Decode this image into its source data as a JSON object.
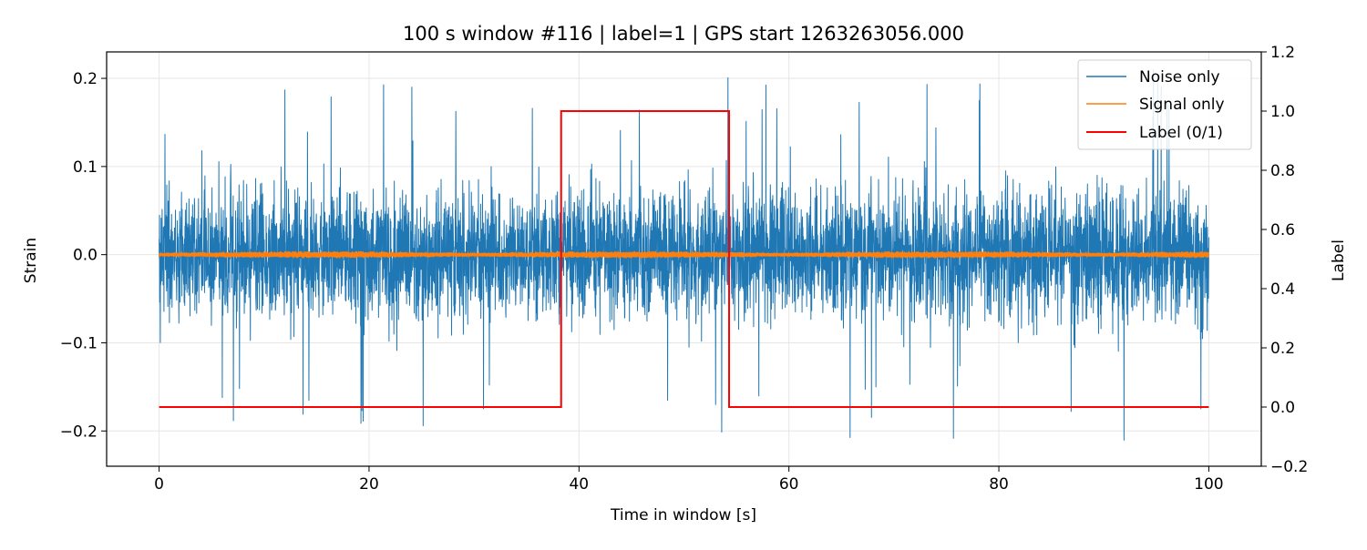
{
  "chart_data": {
    "type": "line",
    "title": "100 s window #116 | label=1 | GPS start 1263263056.000",
    "xlabel": "Time in window [s]",
    "ylabel": "Strain",
    "y2label": "Label",
    "xlim": [
      -5,
      105
    ],
    "ylim": [
      -0.24,
      0.23
    ],
    "y2lim": [
      -0.2,
      1.2
    ],
    "x_ticks": [
      0,
      20,
      40,
      60,
      80,
      100
    ],
    "x_tick_labels": [
      "0",
      "20",
      "40",
      "60",
      "80",
      "100"
    ],
    "y_ticks": [
      -0.2,
      -0.1,
      0.0,
      0.1,
      0.2
    ],
    "y_tick_labels": [
      "−0.2",
      "−0.1",
      "0.0",
      "0.1",
      "0.2"
    ],
    "y2_ticks": [
      -0.2,
      0.0,
      0.2,
      0.4,
      0.6,
      0.8,
      1.0,
      1.2
    ],
    "y2_tick_labels": [
      "−0.2",
      "0.0",
      "0.2",
      "0.4",
      "0.6",
      "0.8",
      "1.0",
      "1.2"
    ],
    "grid": true,
    "legend_position": "top-right",
    "series": [
      {
        "name": "Noise only",
        "color": "#1f77b4",
        "axis": "left",
        "style": "dense-noise",
        "x_range": [
          0,
          100
        ],
        "typical_amplitude": 0.085,
        "extreme_max": 0.21,
        "extreme_min": -0.217
      },
      {
        "name": "Signal only",
        "color": "#ff7f0e",
        "axis": "left",
        "style": "low-amplitude-band",
        "x_range": [
          0,
          100
        ],
        "typical_amplitude": 0.004
      },
      {
        "name": "Label (0/1)",
        "color": "#ff0000",
        "axis": "right",
        "style": "step",
        "x": [
          0,
          38.3,
          38.3,
          54.3,
          54.3,
          100
        ],
        "y": [
          0,
          0,
          1,
          1,
          0,
          0
        ]
      }
    ]
  }
}
